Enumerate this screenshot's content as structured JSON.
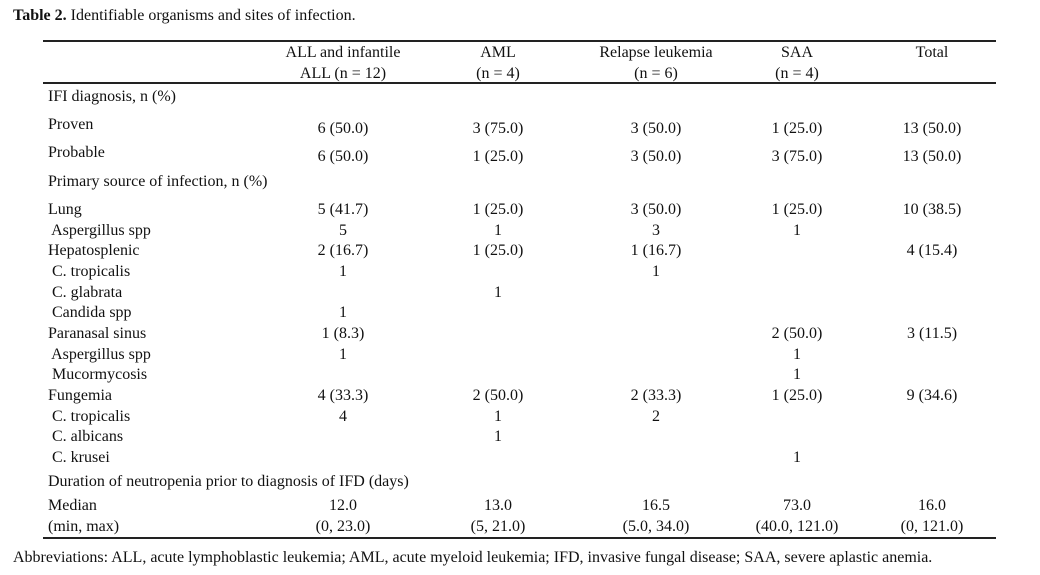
{
  "caption": {
    "label": "Table 2.",
    "text": " Identifiable organisms and sites of infection."
  },
  "columns": [
    {
      "line1": "ALL and infantile",
      "line2": "ALL (n = 12)"
    },
    {
      "line1": "AML",
      "line2": "(n = 4)"
    },
    {
      "line1": "Relapse leukemia",
      "line2": "(n = 6)"
    },
    {
      "line1": "SAA",
      "line2": "(n = 4)"
    },
    {
      "line1": "Total",
      "line2": ""
    }
  ],
  "rows": [
    {
      "label": "IFI diagnosis, n (%)",
      "values": [
        "",
        "",
        "",
        "",
        ""
      ]
    },
    {
      "label": "Proven",
      "values": [
        "6 (50.0)",
        "3 (75.0)",
        "3 (50.0)",
        "1 (25.0)",
        "13 (50.0)"
      ]
    },
    {
      "label": "Probable",
      "values": [
        "6 (50.0)",
        "1 (25.0)",
        "3 (50.0)",
        "3 (75.0)",
        "13 (50.0)"
      ]
    },
    {
      "label": "Primary source of infection, n (%)",
      "values": [
        "",
        "",
        "",
        "",
        ""
      ]
    },
    {
      "label": "Lung",
      "values": [
        "5 (41.7)",
        "1 (25.0)",
        "3 (50.0)",
        "1 (25.0)",
        "10 (38.5)"
      ]
    },
    {
      "label": " Aspergillus spp",
      "values": [
        "5",
        "1",
        "3",
        "1",
        ""
      ]
    },
    {
      "label": "Hepatosplenic",
      "values": [
        "2 (16.7)",
        "1 (25.0)",
        "1 (16.7)",
        "",
        "4 (15.4)"
      ]
    },
    {
      "label": " C. tropicalis",
      "values": [
        "1",
        "",
        "1",
        "",
        ""
      ]
    },
    {
      "label": " C. glabrata",
      "values": [
        "",
        "1",
        "",
        "",
        ""
      ]
    },
    {
      "label": " Candida spp",
      "values": [
        "1",
        "",
        "",
        "",
        ""
      ]
    },
    {
      "label": "Paranasal sinus",
      "values": [
        "1 (8.3)",
        "",
        "",
        "2 (50.0)",
        "3 (11.5)"
      ]
    },
    {
      "label": " Aspergillus spp",
      "values": [
        "1",
        "",
        "",
        "1",
        ""
      ]
    },
    {
      "label": " Mucormycosis",
      "values": [
        "",
        "",
        "",
        "1",
        ""
      ]
    },
    {
      "label": "Fungemia",
      "values": [
        "4 (33.3)",
        "2 (50.0)",
        "2 (33.3)",
        "1 (25.0)",
        "9 (34.6)"
      ]
    },
    {
      "label": " C. tropicalis",
      "values": [
        "4",
        "1",
        "2",
        "",
        ""
      ]
    },
    {
      "label": " C. albicans",
      "values": [
        "",
        "1",
        "",
        "",
        ""
      ]
    },
    {
      "label": " C. krusei",
      "values": [
        "",
        "",
        "",
        "1",
        ""
      ]
    },
    {
      "label": "Duration of neutropenia prior to diagnosis of IFD (days)",
      "values": [
        "",
        "",
        "",
        "",
        ""
      ]
    },
    {
      "label": "Median",
      "values": [
        "12.0",
        "13.0",
        "16.5",
        "73.0",
        "16.0"
      ]
    },
    {
      "label": "(min, max)",
      "values": [
        "(0, 23.0)",
        "(5, 21.0)",
        "(5.0, 34.0)",
        "(40.0, 121.0)",
        "(0, 121.0)"
      ]
    }
  ],
  "footnote": "Abbreviations: ALL, acute lymphoblastic leukemia; AML, acute myeloid leukemia; IFD, invasive fungal disease; SAA, severe aplastic anemia."
}
